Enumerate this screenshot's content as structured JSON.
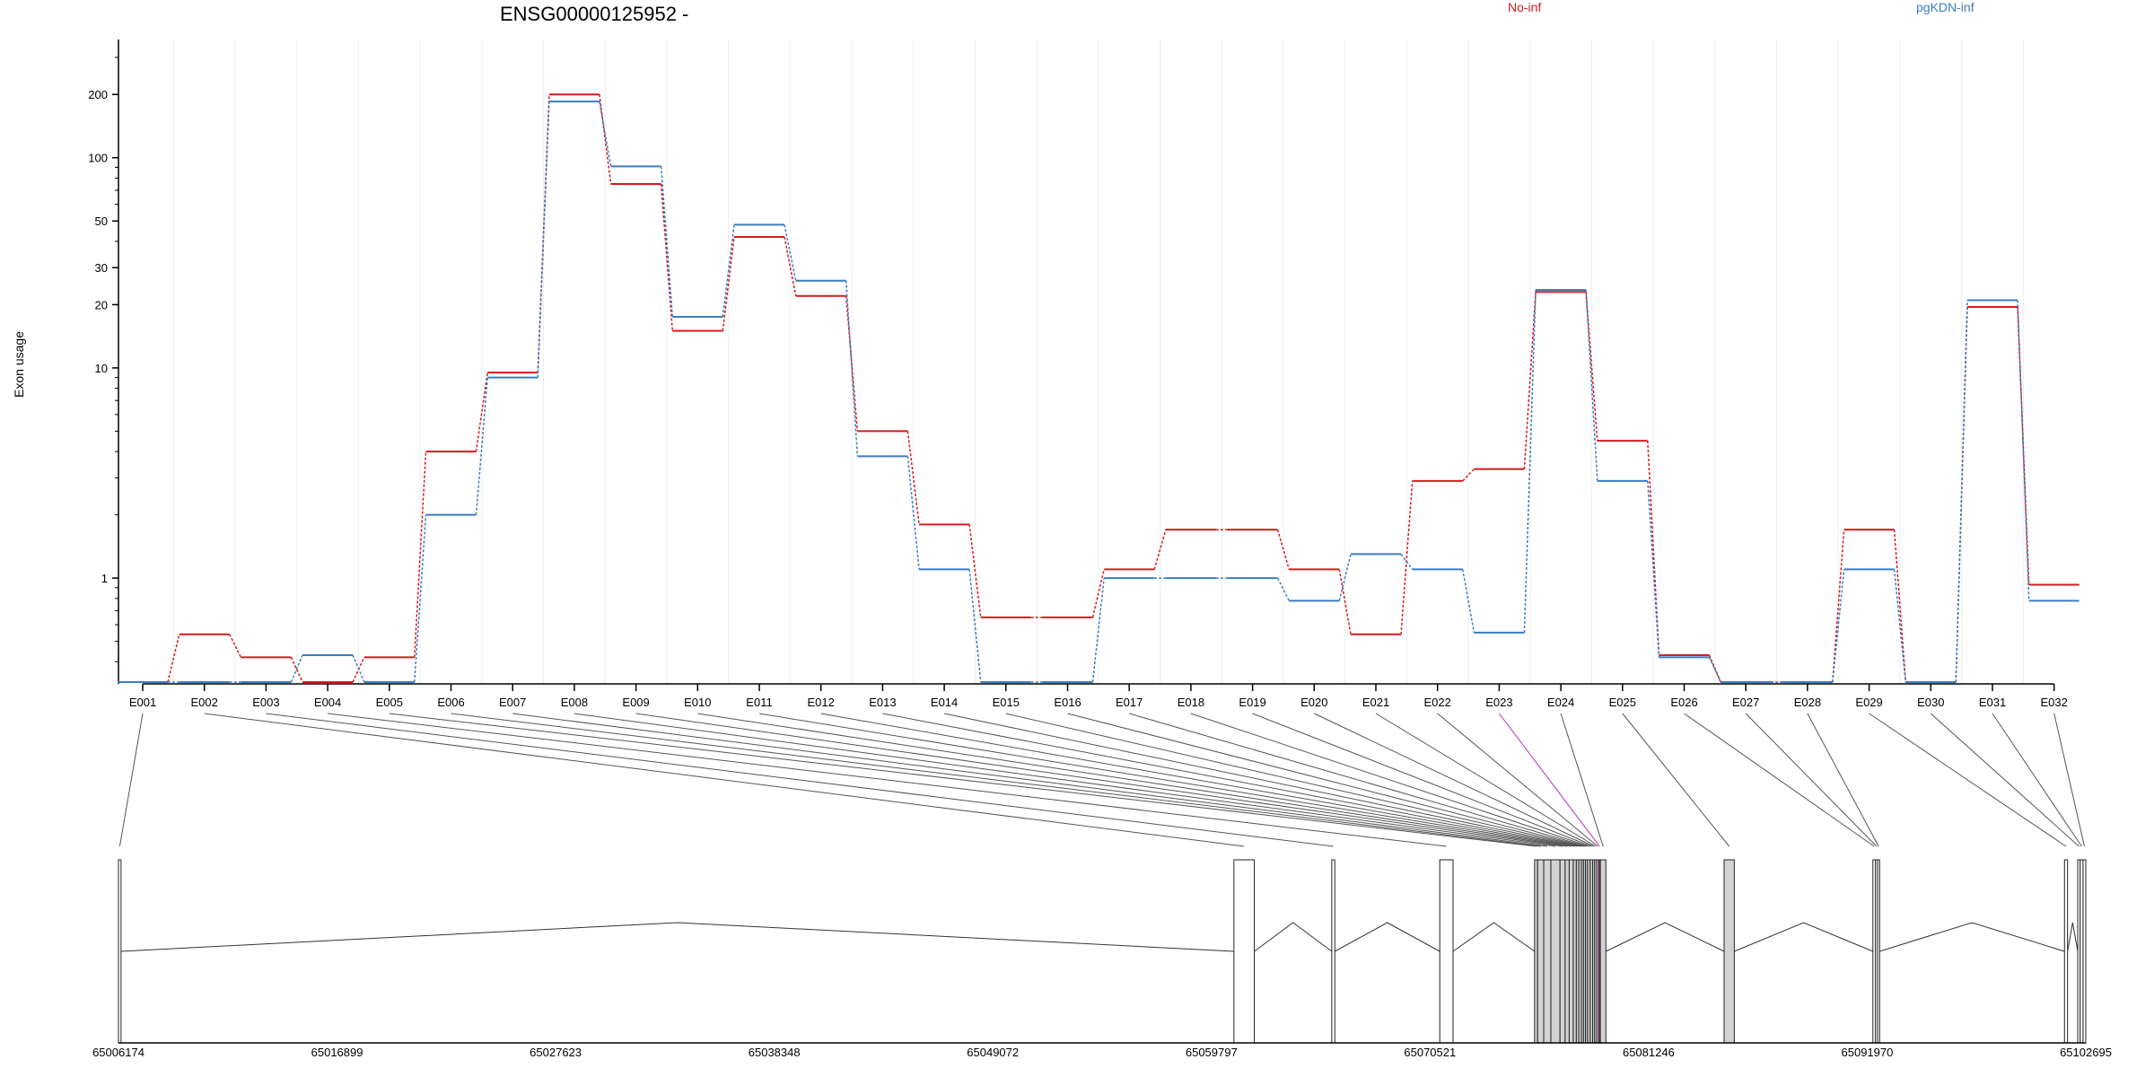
{
  "chart_data": {
    "type": "line",
    "title": "ENSG00000125952 -",
    "ylabel": "Exon usage",
    "yscale": "log",
    "ylim": [
      0.32,
      300
    ],
    "yticks": [
      1,
      10,
      20,
      30,
      50,
      100,
      200
    ],
    "grid": true,
    "legend_position": "top",
    "categories": [
      "E001",
      "E002",
      "E003",
      "E004",
      "E005",
      "E006",
      "E007",
      "E008",
      "E009",
      "E010",
      "E011",
      "E012",
      "E013",
      "E014",
      "E015",
      "E016",
      "E017",
      "E018",
      "E019",
      "E020",
      "E021",
      "E022",
      "E023",
      "E024",
      "E025",
      "E026",
      "E027",
      "E028",
      "E029",
      "E030",
      "E031",
      "E032"
    ],
    "series": [
      {
        "name": "No-inf",
        "color": "#d7191c",
        "values": [
          0.32,
          0.54,
          0.42,
          0.32,
          0.42,
          4.0,
          9.5,
          200,
          75,
          15,
          42,
          22,
          5.0,
          1.8,
          0.65,
          0.65,
          1.1,
          1.7,
          1.7,
          1.1,
          0.54,
          2.9,
          3.3,
          23,
          4.5,
          0.43,
          0.32,
          0.32,
          1.7,
          0.32,
          19.5,
          0.93
        ]
      },
      {
        "name": "pgKDN-inf",
        "color": "#3a7dc2",
        "values": [
          0.32,
          0.32,
          0.32,
          0.43,
          0.32,
          2.0,
          9.0,
          185,
          91,
          17.5,
          48,
          26,
          3.8,
          1.1,
          0.32,
          0.32,
          1.0,
          1.0,
          1.0,
          0.78,
          1.3,
          1.1,
          0.55,
          23.5,
          2.9,
          0.42,
          0.32,
          0.32,
          1.1,
          0.32,
          21,
          0.78
        ]
      }
    ],
    "gene_model": {
      "coordinates": [
        "65006174",
        "65016899",
        "65027623",
        "65038348",
        "65049072",
        "65059797",
        "65070521",
        "65081246",
        "65091970",
        "65102695"
      ],
      "coord_values": [
        65006174,
        65016899,
        65027623,
        65038348,
        65049072,
        65059797,
        65070521,
        65081246,
        65091970,
        65102695
      ],
      "exons": [
        {
          "id": "E001",
          "start": 65006174,
          "end": 65006300,
          "fill": "#ffffff"
        },
        {
          "id": "E002",
          "start": 65060900,
          "end": 65061900,
          "fill": "#ffffff"
        },
        {
          "id": "E003",
          "start": 65065700,
          "end": 65065850,
          "fill": "#ffffff"
        },
        {
          "id": "E004",
          "start": 65071000,
          "end": 65071650,
          "fill": "#ffffff"
        },
        {
          "id": "E005",
          "start": 65075650,
          "end": 65075800,
          "fill": "#d3d3d3"
        },
        {
          "id": "E006",
          "start": 65075800,
          "end": 65076100,
          "fill": "#d3d3d3"
        },
        {
          "id": "E007",
          "start": 65076100,
          "end": 65076450,
          "fill": "#d3d3d3"
        },
        {
          "id": "E008",
          "start": 65076450,
          "end": 65076900,
          "fill": "#d3d3d3"
        },
        {
          "id": "E009",
          "start": 65076900,
          "end": 65077150,
          "fill": "#d3d3d3"
        },
        {
          "id": "E010",
          "start": 65077150,
          "end": 65077350,
          "fill": "#d3d3d3"
        },
        {
          "id": "E011",
          "start": 65077350,
          "end": 65077550,
          "fill": "#d3d3d3"
        },
        {
          "id": "E012",
          "start": 65077550,
          "end": 65077700,
          "fill": "#d3d3d3"
        },
        {
          "id": "E013",
          "start": 65077700,
          "end": 65077820,
          "fill": "#d3d3d3"
        },
        {
          "id": "E014",
          "start": 65077820,
          "end": 65077950,
          "fill": "#d3d3d3"
        },
        {
          "id": "E015",
          "start": 65077950,
          "end": 65078050,
          "fill": "#d3d3d3"
        },
        {
          "id": "E016",
          "start": 65078050,
          "end": 65078150,
          "fill": "#d3d3d3"
        },
        {
          "id": "E017",
          "start": 65078150,
          "end": 65078250,
          "fill": "#d3d3d3"
        },
        {
          "id": "E018",
          "start": 65078250,
          "end": 65078380,
          "fill": "#d3d3d3"
        },
        {
          "id": "E019",
          "start": 65078380,
          "end": 65078500,
          "fill": "#d3d3d3"
        },
        {
          "id": "E020",
          "start": 65078500,
          "end": 65078600,
          "fill": "#d3d3d3"
        },
        {
          "id": "E021",
          "start": 65078600,
          "end": 65078700,
          "fill": "#d3d3d3"
        },
        {
          "id": "E022",
          "start": 65078700,
          "end": 65078800,
          "fill": "#d3d3d3"
        },
        {
          "id": "E023",
          "start": 65078800,
          "end": 65078880,
          "fill": "#cc33cc"
        },
        {
          "id": "E024",
          "start": 65078880,
          "end": 65079150,
          "fill": "#d3d3d3"
        },
        {
          "id": "E025",
          "start": 65084950,
          "end": 65085450,
          "fill": "#d3d3d3"
        },
        {
          "id": "E026",
          "start": 65092250,
          "end": 65092380,
          "fill": "#ffffff"
        },
        {
          "id": "E027",
          "start": 65092380,
          "end": 65092480,
          "fill": "#ffffff"
        },
        {
          "id": "E028",
          "start": 65092480,
          "end": 65092580,
          "fill": "#ffffff"
        },
        {
          "id": "E029",
          "start": 65101650,
          "end": 65101800,
          "fill": "#ffffff"
        },
        {
          "id": "E030",
          "start": 65102300,
          "end": 65102420,
          "fill": "#ffffff"
        },
        {
          "id": "E031",
          "start": 65102420,
          "end": 65102560,
          "fill": "#ffffff"
        },
        {
          "id": "E032",
          "start": 65102560,
          "end": 65102695,
          "fill": "#ffffff"
        }
      ]
    }
  }
}
